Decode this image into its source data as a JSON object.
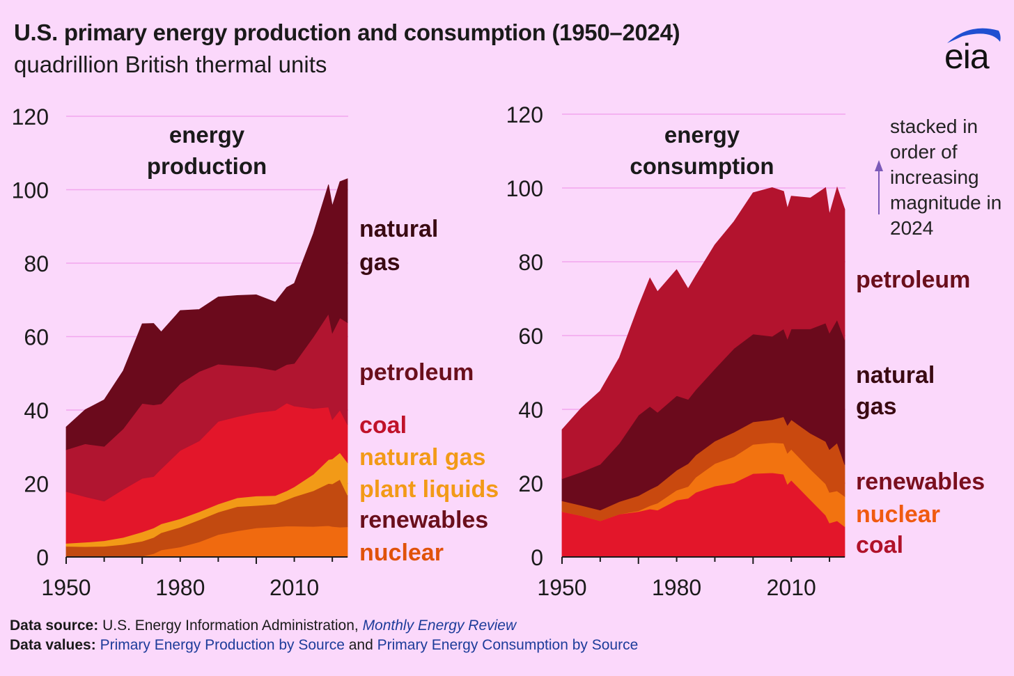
{
  "header": {
    "title": "U.S. primary energy production and consumption (1950–2024)",
    "subtitle": "quadrillion British thermal units",
    "logo_text": "eia"
  },
  "note": {
    "lines": [
      "stacked in",
      "order of",
      "increasing",
      "magnitude in",
      "2024"
    ],
    "arrow_color": "#7b5ab8"
  },
  "footer": {
    "source_label": "Data source:",
    "source_text": "U.S. Energy Information Administration, ",
    "source_link": "Monthly Energy Review",
    "values_label": "Data values:",
    "values_link1": "Primary Energy Production by Source",
    "values_and": " and ",
    "values_link2": "Primary Energy Consumption by Source"
  },
  "chart_data": [
    {
      "type": "area",
      "title": "energy production",
      "title_lines": [
        "energy",
        "production"
      ],
      "stacked": true,
      "x": [
        1950,
        1955,
        1960,
        1965,
        1970,
        1973,
        1975,
        1980,
        1985,
        1990,
        1995,
        2000,
        2005,
        2008,
        2010,
        2015,
        2019,
        2020,
        2022,
        2024
      ],
      "ylim": [
        0,
        120
      ],
      "yticks": [
        0,
        20,
        40,
        60,
        80,
        100,
        120
      ],
      "xticks": [
        1950,
        1980,
        2010
      ],
      "grid": true,
      "series": [
        {
          "name": "nuclear",
          "color": "#f06a0f",
          "label_color": "#e0520a",
          "label_lines": [
            "nuclear"
          ],
          "values": [
            0,
            0,
            0,
            0,
            0.2,
            0.9,
            1.9,
            2.7,
            4.1,
            6.1,
            7.1,
            7.9,
            8.2,
            8.4,
            8.4,
            8.3,
            8.5,
            8.3,
            8.1,
            8.2
          ]
        },
        {
          "name": "renewables",
          "color": "#c24a10",
          "label_color": "#6a0f1c",
          "label_lines": [
            "renewables"
          ],
          "values": [
            2.9,
            2.8,
            2.9,
            3.4,
            4.1,
            4.4,
            4.7,
            5.4,
            6.0,
            6.1,
            6.6,
            6.1,
            6.2,
            7.2,
            8.0,
            9.7,
            11.5,
            11.6,
            13.0,
            8.6
          ]
        },
        {
          "name": "natural gas plant liquids",
          "color": "#f29a17",
          "label_color": "#f29a17",
          "label_lines": [
            "natural gas",
            "plant liquids"
          ],
          "values": [
            0.8,
            1.2,
            1.5,
            1.9,
            2.5,
            2.6,
            2.4,
            2.3,
            2.2,
            2.2,
            2.4,
            2.6,
            2.3,
            2.4,
            2.7,
            4.5,
            6.5,
            6.8,
            7.3,
            8.9
          ]
        },
        {
          "name": "coal",
          "color": "#e3162a",
          "label_color": "#c0122a",
          "label_lines": [
            "coal"
          ],
          "values": [
            14.1,
            12.4,
            10.8,
            13.1,
            14.6,
            14.0,
            15.0,
            18.6,
            19.3,
            22.5,
            22.1,
            22.7,
            23.2,
            23.9,
            22.0,
            17.9,
            14.3,
            10.7,
            11.6,
            10.3
          ]
        },
        {
          "name": "petroleum",
          "color": "#b11530",
          "label_color": "#6a0f1c",
          "label_lines": [
            "petroleum"
          ],
          "values": [
            11.4,
            14.4,
            14.9,
            16.5,
            20.4,
            19.5,
            17.7,
            18.2,
            18.9,
            15.6,
            13.9,
            12.4,
            10.9,
            10.5,
            11.6,
            19.5,
            25.4,
            23.6,
            25.1,
            27.8
          ]
        },
        {
          "name": "natural gas",
          "color": "#6b0a1c",
          "label_color": "#3a0a12",
          "label_lines": [
            "natural",
            "gas"
          ],
          "values": [
            6.2,
            9.3,
            12.7,
            15.8,
            21.7,
            22.2,
            19.6,
            19.9,
            16.9,
            18.3,
            19.1,
            19.7,
            18.6,
            21.0,
            21.8,
            28.1,
            35.2,
            34.6,
            37.1,
            39.2
          ]
        }
      ]
    },
    {
      "type": "area",
      "title": "energy consumption",
      "title_lines": [
        "energy",
        "consumption"
      ],
      "stacked": true,
      "x": [
        1950,
        1955,
        1960,
        1965,
        1970,
        1973,
        1975,
        1980,
        1983,
        1985,
        1990,
        1995,
        2000,
        2005,
        2008,
        2009,
        2010,
        2015,
        2019,
        2020,
        2022,
        2024
      ],
      "ylim": [
        0,
        120
      ],
      "yticks": [
        0,
        20,
        40,
        60,
        80,
        100,
        120
      ],
      "xticks": [
        1950,
        1980,
        2010
      ],
      "grid": true,
      "series": [
        {
          "name": "coal",
          "color": "#e3162a",
          "label_color": "#b0122a",
          "label_lines": [
            "coal"
          ],
          "values": [
            12.3,
            11.2,
            9.8,
            11.6,
            12.3,
            13.0,
            12.7,
            15.4,
            15.9,
            17.5,
            19.2,
            20.1,
            22.6,
            22.8,
            22.4,
            19.7,
            20.8,
            15.5,
            11.3,
            9.2,
            9.8,
            8.2
          ]
        },
        {
          "name": "nuclear",
          "color": "#f27310",
          "label_color": "#f05a10",
          "label_lines": [
            "nuclear"
          ],
          "values": [
            0,
            0,
            0,
            0,
            0.2,
            0.9,
            1.9,
            2.7,
            3.2,
            4.1,
            6.1,
            7.1,
            7.9,
            8.2,
            8.4,
            8.4,
            8.4,
            8.3,
            8.5,
            8.3,
            8.1,
            8.2
          ]
        },
        {
          "name": "renewables",
          "color": "#c9490f",
          "label_color": "#7a0f1e",
          "label_lines": [
            "renewables"
          ],
          "values": [
            2.9,
            2.8,
            2.9,
            3.4,
            4.1,
            4.4,
            4.7,
            5.4,
            6.2,
            6.0,
            6.1,
            6.6,
            6.1,
            6.2,
            7.2,
            7.6,
            8.0,
            9.7,
            11.5,
            11.6,
            13.0,
            8.6
          ]
        },
        {
          "name": "natural gas",
          "color": "#6b0a1c",
          "label_color": "#3a0a12",
          "label_lines": [
            "natural",
            "gas"
          ],
          "values": [
            6.0,
            9.0,
            12.4,
            15.8,
            21.8,
            22.5,
            19.9,
            20.2,
            17.4,
            17.7,
            19.6,
            22.7,
            23.8,
            22.6,
            23.8,
            23.4,
            24.6,
            28.3,
            32.1,
            31.6,
            33.4,
            33.8
          ]
        },
        {
          "name": "petroleum",
          "color": "#b3132e",
          "label_color": "#6a0f1c",
          "label_lines": [
            "petroleum"
          ],
          "values": [
            13.3,
            17.3,
            19.9,
            23.2,
            29.5,
            34.8,
            32.7,
            34.2,
            30.0,
            30.9,
            33.6,
            34.4,
            38.3,
            40.3,
            37.3,
            35.4,
            36.0,
            35.5,
            36.7,
            32.2,
            35.9,
            35.4
          ]
        }
      ]
    }
  ]
}
